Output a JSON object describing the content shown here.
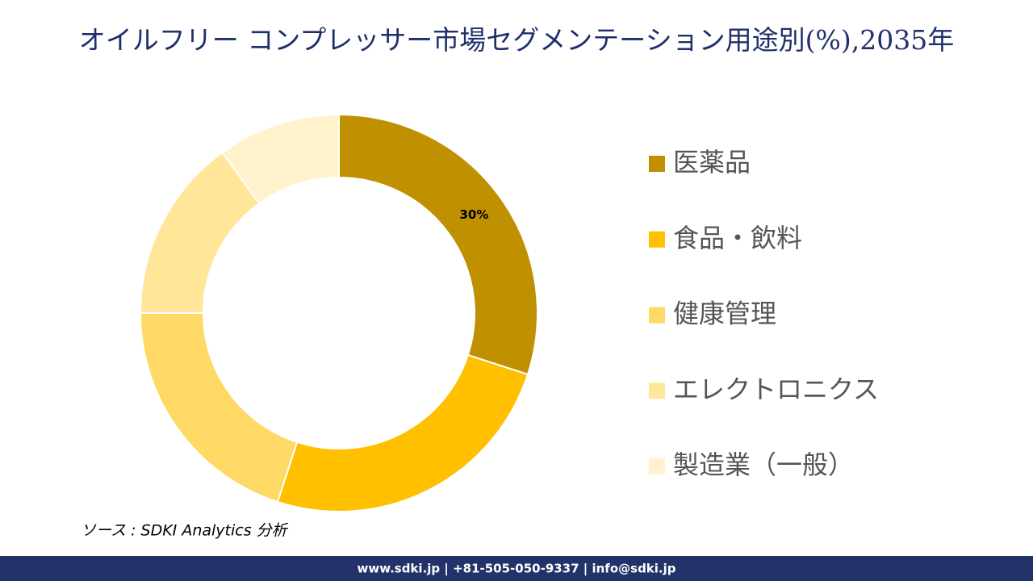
{
  "chart_data": {
    "type": "donut",
    "title": "オイルフリー コンプレッサー市場セグメンテーション用途別(%),2035年",
    "categories": [
      "医薬品",
      "食品・飲料",
      "健康管理",
      "エレクトロニクス",
      "製造業（一般）"
    ],
    "values": [
      30,
      25,
      20,
      15,
      10
    ],
    "value_labels": [
      "30%",
      null,
      null,
      null,
      null
    ],
    "colors": [
      "#BF9000",
      "#FFC000",
      "#FFD966",
      "#FFE699",
      "#FFF2CC"
    ],
    "legend": "right",
    "source": "ソース : SDKI Analytics 分析",
    "footer": "www.sdki.jp | +81-505-050-9337 | info@sdki.jp"
  }
}
